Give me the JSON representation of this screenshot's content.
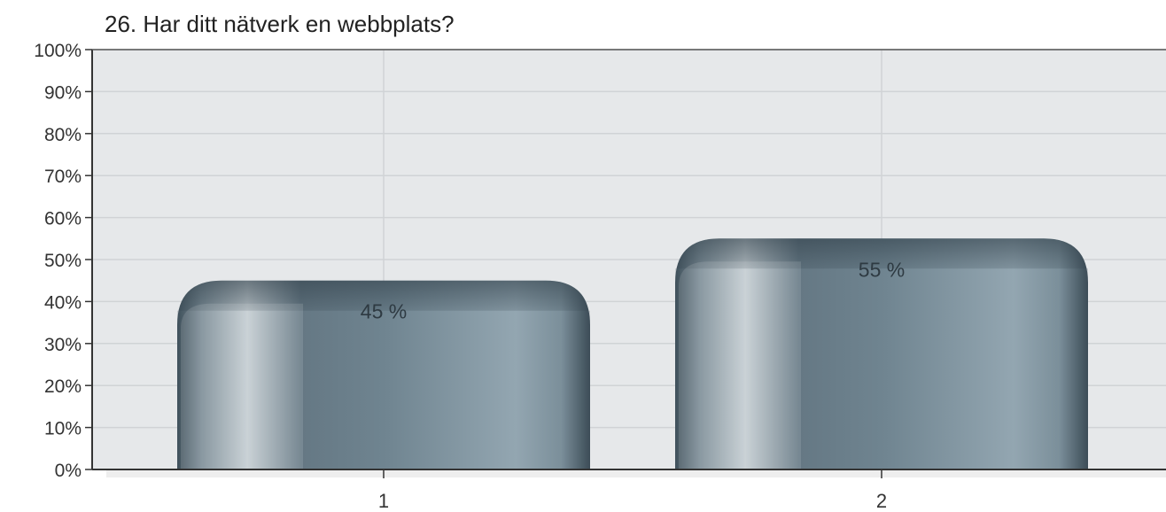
{
  "chart_data": {
    "type": "bar",
    "title": "26. Har ditt nätverk en webbplats?",
    "xlabel": "",
    "ylabel": "",
    "categories": [
      "1",
      "2"
    ],
    "values": [
      45,
      55
    ],
    "data_labels": [
      "45 %",
      "55 %"
    ],
    "ylim": [
      0,
      100
    ],
    "yticks": [
      "0%",
      "10%",
      "20%",
      "30%",
      "40%",
      "50%",
      "60%",
      "70%",
      "80%",
      "90%",
      "100%"
    ],
    "grid": true,
    "legend": "none",
    "colors": {
      "bar": "#6f8490",
      "bar_light": "#9aacb6",
      "bar_dark": "#3f505b",
      "plot_bg": "#e6e8ea",
      "grid": "#d0d3d6"
    }
  }
}
